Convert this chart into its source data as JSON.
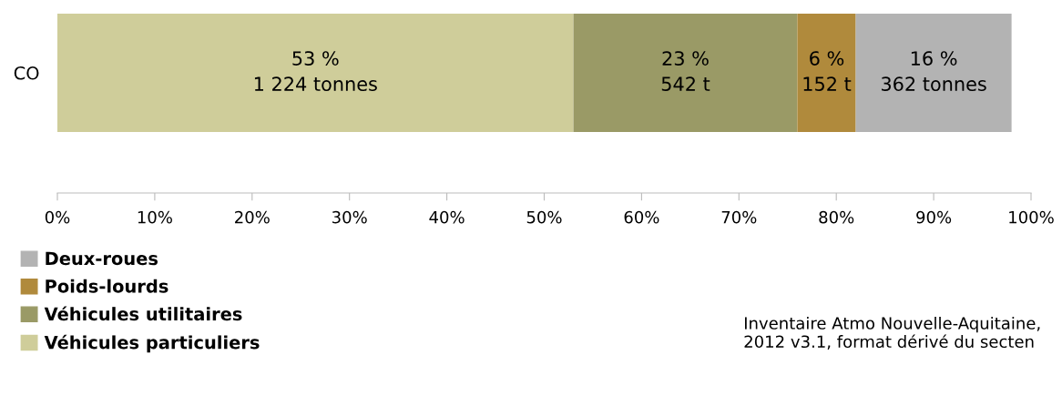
{
  "chart_data": {
    "type": "bar",
    "orientation": "horizontal",
    "stacked": true,
    "categories": [
      "CO"
    ],
    "series": [
      {
        "name": "Véhicules particuliers",
        "color": "#cfcd9a",
        "values": [
          53
        ],
        "value_labels": [
          "53 %\n1 224 tonnes"
        ]
      },
      {
        "name": "Véhicules utilitaires",
        "color": "#9a9a66",
        "values": [
          23
        ],
        "value_labels": [
          "23 %\n542 t"
        ]
      },
      {
        "name": "Poids-lourds",
        "color": "#b08a3c",
        "values": [
          6
        ],
        "value_labels": [
          "6 %\n152 t"
        ]
      },
      {
        "name": "Deux-roues",
        "color": "#b3b3b3",
        "values": [
          16
        ],
        "value_labels": [
          "16 %\n362 tonnes"
        ]
      }
    ],
    "xlim": [
      0,
      100
    ],
    "xticks": [
      {
        "value": 0,
        "label": "0%"
      },
      {
        "value": 10,
        "label": "10%"
      },
      {
        "value": 20,
        "label": "20%"
      },
      {
        "value": 30,
        "label": "30%"
      },
      {
        "value": 40,
        "label": "40%"
      },
      {
        "value": 50,
        "label": "50%"
      },
      {
        "value": 60,
        "label": "60%"
      },
      {
        "value": 70,
        "label": "70%"
      },
      {
        "value": 80,
        "label": "80%"
      },
      {
        "value": 90,
        "label": "90%"
      },
      {
        "value": 100,
        "label": "100%"
      }
    ],
    "grid": false,
    "legend": "bottom left",
    "annotations": [
      "Inventaire Atmo Nouvelle-Aquitaine, 2012 v3.1, format dérivé du secten"
    ]
  }
}
